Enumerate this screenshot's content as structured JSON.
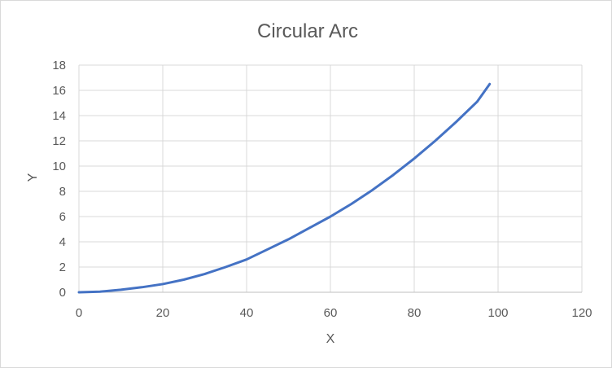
{
  "chart_data": {
    "type": "line",
    "title": "Circular Arc",
    "xlabel": "X",
    "ylabel": "Y",
    "xlim": [
      0,
      120
    ],
    "ylim": [
      0,
      18
    ],
    "xticks": [
      0,
      20,
      40,
      60,
      80,
      100,
      120
    ],
    "yticks": [
      0,
      2,
      4,
      6,
      8,
      10,
      12,
      14,
      16,
      18
    ],
    "grid": true,
    "legend": "none",
    "series": [
      {
        "name": "Y",
        "color": "#4472c4",
        "x": [
          0,
          5,
          10,
          15,
          20,
          25,
          30,
          35,
          40,
          45,
          50,
          55,
          60,
          65,
          70,
          75,
          80,
          85,
          90,
          95,
          98
        ],
        "y": [
          0,
          0.05,
          0.2,
          0.4,
          0.65,
          1.0,
          1.45,
          2.0,
          2.6,
          3.4,
          4.2,
          5.1,
          6.0,
          7.0,
          8.1,
          9.3,
          10.6,
          12.0,
          13.5,
          15.1,
          16.5
        ]
      }
    ]
  }
}
